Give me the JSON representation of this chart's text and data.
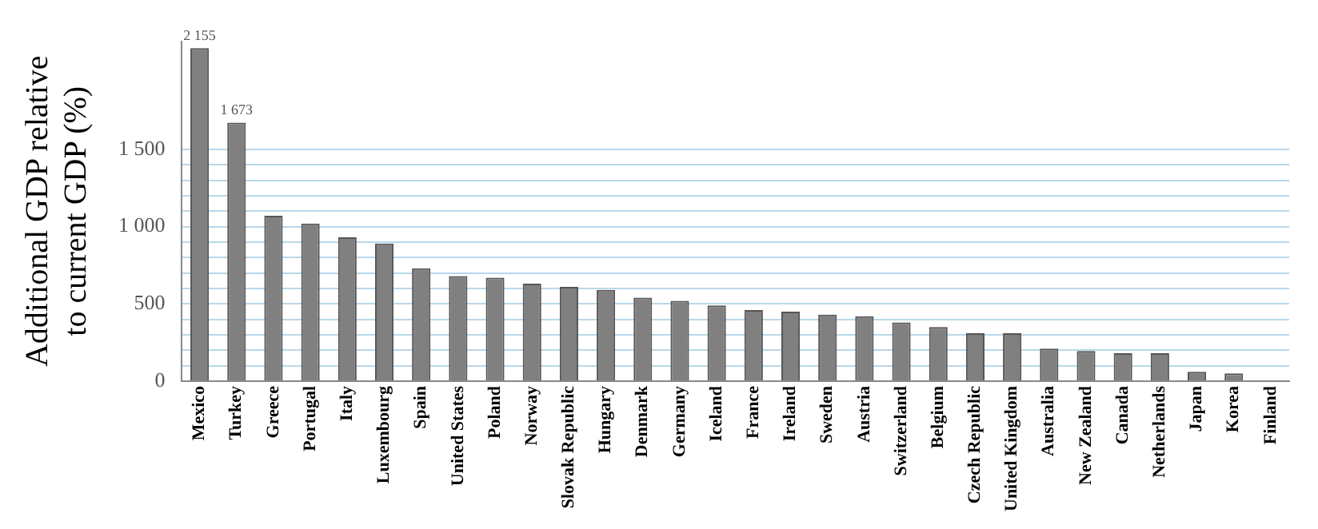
{
  "chart_data": {
    "type": "bar",
    "ylabel": "Additional GDP relative\nto current GDP (%)",
    "categories": [
      "Mexico",
      "Turkey",
      "Greece",
      "Portugal",
      "Italy",
      "Luxembourg",
      "Spain",
      "United States",
      "Poland",
      "Norway",
      "Slovak Republic",
      "Hungary",
      "Denmark",
      "Germany",
      "Iceland",
      "France",
      "Ireland",
      "Sweden",
      "Austria",
      "Switzerland",
      "Belgium",
      "Czech Republic",
      "United Kingdom",
      "Australia",
      "New Zealand",
      "Canada",
      "Netherlands",
      "Japan",
      "Korea",
      "Finland"
    ],
    "values": [
      2155,
      1673,
      1070,
      1020,
      930,
      890,
      730,
      680,
      670,
      630,
      610,
      590,
      540,
      520,
      490,
      460,
      450,
      430,
      420,
      380,
      350,
      310,
      310,
      210,
      195,
      180,
      180,
      60,
      50,
      0
    ],
    "value_labels": [
      "2 155",
      "1 673",
      null,
      null,
      null,
      null,
      null,
      null,
      null,
      null,
      null,
      null,
      null,
      null,
      null,
      null,
      null,
      null,
      null,
      null,
      null,
      null,
      null,
      null,
      null,
      null,
      null,
      null,
      null,
      null
    ],
    "color": "#808080",
    "ylim": [
      0,
      2200
    ],
    "yticks": [
      0,
      {
        "value": 100,
        "label": null
      },
      {
        "value": 200,
        "label": null
      },
      {
        "value": 300,
        "label": null
      },
      {
        "value": 400,
        "label": null
      },
      500,
      {
        "value": 600,
        "label": null
      },
      {
        "value": 700,
        "label": null
      },
      {
        "value": 800,
        "label": null
      },
      {
        "value": 900,
        "label": null
      },
      {
        "value": 1000,
        "label": "1 000"
      },
      {
        "value": 1100,
        "label": null
      },
      {
        "value": 1200,
        "label": null
      },
      {
        "value": 1300,
        "label": null
      },
      {
        "value": 1400,
        "label": null
      },
      {
        "value": 1500,
        "label": "1 500"
      }
    ],
    "grid": "y",
    "legend": false
  }
}
